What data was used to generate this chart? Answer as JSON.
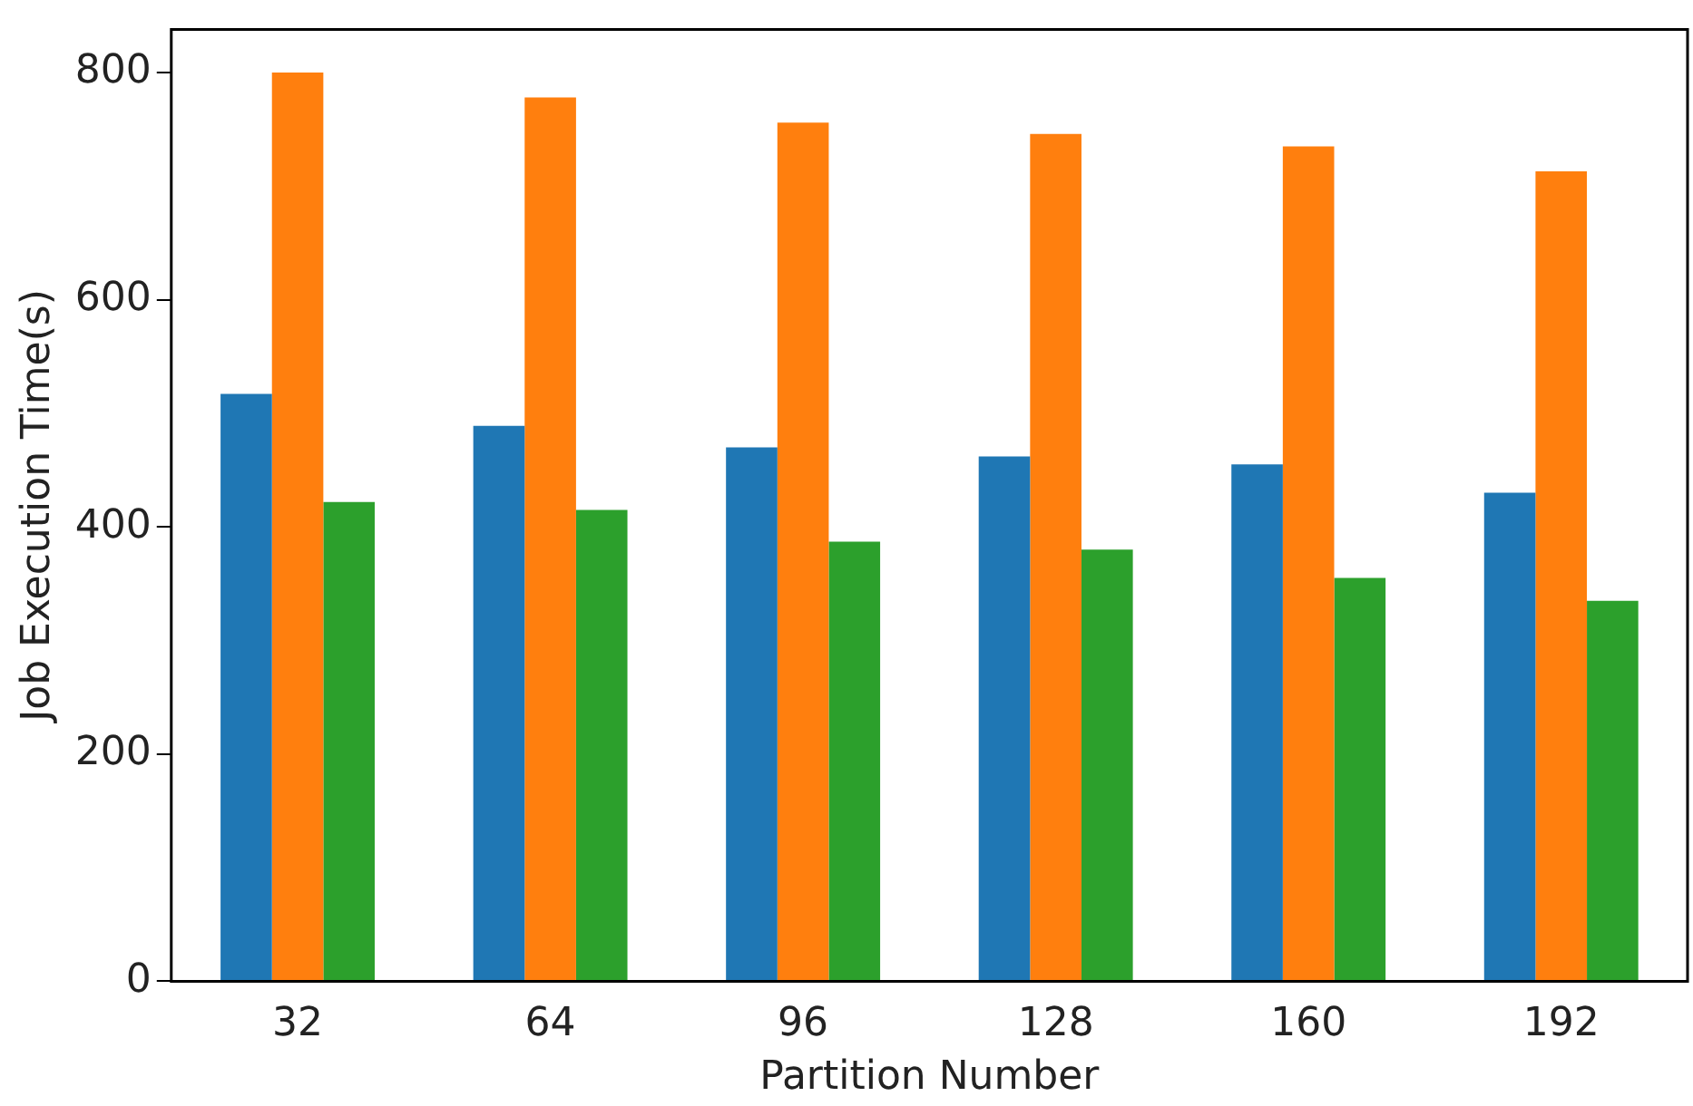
{
  "chart_data": {
    "type": "bar",
    "xlabel": "Partition Number",
    "ylabel": "Job Execution Time(s)",
    "categories": [
      "32",
      "64",
      "96",
      "128",
      "160",
      "192"
    ],
    "series": [
      {
        "color": "#1f77b4",
        "values": [
          517,
          489,
          470,
          462,
          455,
          430
        ]
      },
      {
        "color": "#ff7f0e",
        "values": [
          800,
          778,
          756,
          746,
          735,
          713
        ]
      },
      {
        "color": "#2ca02c",
        "values": [
          422,
          415,
          387,
          380,
          355,
          335
        ]
      }
    ],
    "ylim": [
      0,
      838
    ],
    "yticks": [
      0,
      200,
      400,
      600,
      800
    ],
    "grid": false,
    "legend": false
  }
}
